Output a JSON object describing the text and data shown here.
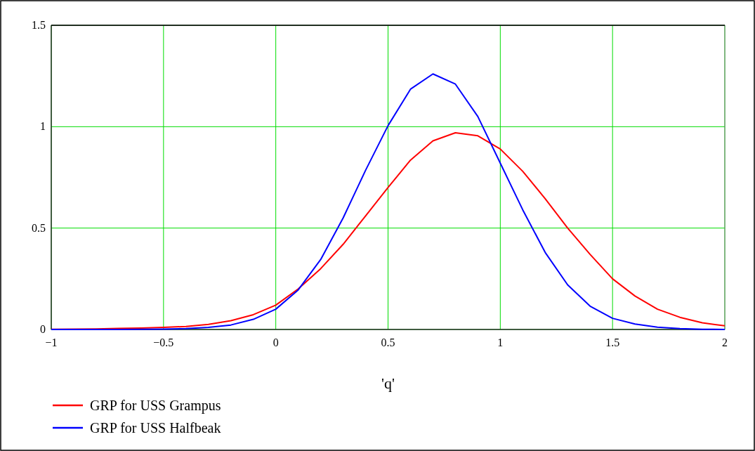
{
  "chart_data": {
    "type": "line",
    "xlabel": "'q'",
    "x": [
      -1,
      -0.9,
      -0.8,
      -0.7,
      -0.6,
      -0.5,
      -0.4,
      -0.3,
      -0.2,
      -0.1,
      0,
      0.1,
      0.2,
      0.3,
      0.4,
      0.5,
      0.6,
      0.7,
      0.8,
      0.9,
      1,
      1.1,
      1.2,
      1.3,
      1.4,
      1.5,
      1.6,
      1.7,
      1.8,
      1.9,
      2
    ],
    "series": [
      {
        "name": "GRP for USS Grampus",
        "color": "#ff0000",
        "values": [
          0.001,
          0.002,
          0.003,
          0.005,
          0.007,
          0.01,
          0.015,
          0.025,
          0.043,
          0.073,
          0.12,
          0.2,
          0.3,
          0.42,
          0.56,
          0.7,
          0.835,
          0.93,
          0.97,
          0.955,
          0.89,
          0.78,
          0.645,
          0.5,
          0.37,
          0.25,
          0.165,
          0.1,
          0.06,
          0.033,
          0.018
        ]
      },
      {
        "name": "GRP for USS Halfbeak",
        "color": "#0000ff",
        "values": [
          0,
          0,
          0,
          0,
          0.001,
          0.002,
          0.004,
          0.01,
          0.022,
          0.05,
          0.1,
          0.195,
          0.345,
          0.55,
          0.785,
          1.005,
          1.185,
          1.26,
          1.21,
          1.05,
          0.82,
          0.59,
          0.38,
          0.22,
          0.115,
          0.055,
          0.027,
          0.011,
          0.004,
          0.001,
          0
        ]
      }
    ],
    "xlim": [
      -1,
      2
    ],
    "xticks": [
      {
        "value": -1,
        "label": "−1"
      },
      {
        "value": -0.5,
        "label": "−0.5"
      },
      0,
      0.5,
      1,
      1.5,
      2
    ],
    "ylim": [
      0,
      1.5
    ],
    "yticks": [
      0,
      0.5,
      1,
      1.5
    ],
    "grid": true,
    "legend": "bottom left",
    "line_style": "solid",
    "marker": "none"
  }
}
